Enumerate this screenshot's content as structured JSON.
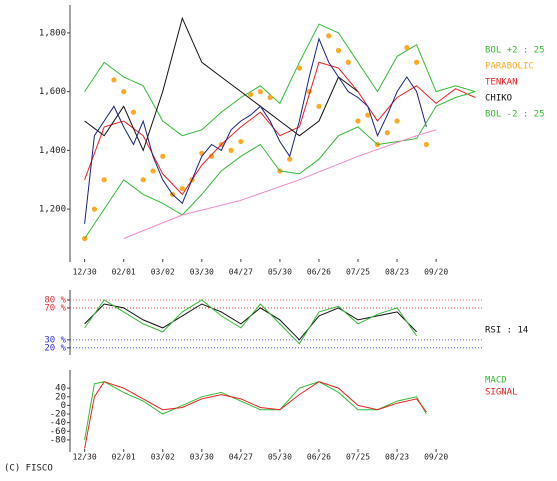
{
  "footer": "(C) FISCO",
  "chart_data": [
    {
      "type": "line",
      "xlim": [
        -1.5,
        40.7
      ],
      "xticks": [
        {
          "value": 0,
          "label": "12/30"
        },
        {
          "value": 4,
          "label": "02/01"
        },
        {
          "value": 8,
          "label": "03/02"
        },
        {
          "value": 12,
          "label": "03/30"
        },
        {
          "value": 16,
          "label": "04/27"
        },
        {
          "value": 20,
          "label": "05/30"
        },
        {
          "value": 24,
          "label": "06/26"
        },
        {
          "value": 28,
          "label": "07/25"
        },
        {
          "value": 32,
          "label": "08/23"
        },
        {
          "value": 36,
          "label": "09/20"
        }
      ],
      "ylim": [
        1020,
        1895
      ],
      "yticks": [
        {
          "value": 1200,
          "label": "1,200"
        },
        {
          "value": 1400,
          "label": "1,400"
        },
        {
          "value": 1600,
          "label": "1,600"
        },
        {
          "value": 1800,
          "label": "1,800"
        }
      ],
      "series": [
        {
          "name": "BOL +2 : 25",
          "color": "#33bb33",
          "style": "line",
          "x": [
            0,
            2,
            4,
            6,
            8,
            10,
            12,
            14,
            16,
            18,
            20,
            22,
            24,
            26,
            28,
            30,
            32,
            34,
            36,
            38,
            40
          ],
          "values": [
            1600,
            1700,
            1650,
            1620,
            1500,
            1450,
            1470,
            1530,
            1580,
            1620,
            1560,
            1700,
            1830,
            1800,
            1700,
            1600,
            1720,
            1760,
            1600,
            1620,
            1600
          ]
        },
        {
          "name": "PARABOLIC",
          "color": "#ffaa22",
          "style": "dots",
          "x": [
            0,
            1,
            2,
            3,
            4,
            5,
            6,
            7,
            8,
            9,
            10,
            11,
            12,
            13,
            14,
            15,
            16,
            17,
            18,
            19,
            20,
            21,
            22,
            23,
            24,
            25,
            26,
            27,
            28,
            29,
            30,
            31,
            32,
            33,
            34,
            35
          ],
          "values": [
            1100,
            1200,
            1300,
            1640,
            1600,
            1530,
            1300,
            1330,
            1380,
            1250,
            1270,
            1300,
            1390,
            1380,
            1420,
            1400,
            1430,
            1590,
            1600,
            1580,
            1330,
            1370,
            1680,
            1600,
            1550,
            1790,
            1740,
            1700,
            1500,
            1520,
            1420,
            1460,
            1500,
            1750,
            1700,
            1420
          ]
        },
        {
          "name": "TENKAN",
          "color": "#ee2222",
          "style": "line",
          "x": [
            0,
            2,
            4,
            6,
            8,
            10,
            12,
            14,
            16,
            18,
            20,
            22,
            24,
            26,
            28,
            30,
            32,
            34,
            36,
            38,
            40
          ],
          "values": [
            1300,
            1480,
            1500,
            1450,
            1320,
            1250,
            1350,
            1420,
            1480,
            1530,
            1450,
            1480,
            1700,
            1680,
            1600,
            1500,
            1580,
            1620,
            1560,
            1610,
            1580
          ]
        },
        {
          "name": "CHIKO",
          "color": "#111111",
          "style": "line",
          "x": [
            0,
            2,
            4,
            6,
            8,
            10,
            12,
            14,
            16,
            18,
            20,
            22,
            24,
            26,
            28
          ],
          "values": [
            1500,
            1450,
            1550,
            1400,
            1600,
            1850,
            1700,
            1650,
            1600,
            1550,
            1500,
            1450,
            1500,
            1650,
            1600
          ]
        },
        {
          "color": "#1a237e",
          "style": "line",
          "x": [
            0,
            1,
            2,
            3,
            4,
            5,
            6,
            7,
            8,
            9,
            10,
            11,
            12,
            13,
            14,
            15,
            16,
            17,
            18,
            19,
            20,
            21,
            22,
            23,
            24,
            25,
            26,
            27,
            28,
            29,
            30,
            31,
            32,
            33,
            34,
            35
          ],
          "values": [
            1150,
            1450,
            1500,
            1550,
            1480,
            1420,
            1500,
            1380,
            1300,
            1250,
            1220,
            1300,
            1380,
            1420,
            1400,
            1470,
            1500,
            1520,
            1550,
            1500,
            1430,
            1380,
            1500,
            1650,
            1780,
            1700,
            1650,
            1600,
            1580,
            1550,
            1450,
            1520,
            1600,
            1650,
            1600,
            1480
          ]
        },
        {
          "name": "BOL -2 : 25",
          "color": "#33bb33",
          "style": "line",
          "x": [
            0,
            2,
            4,
            6,
            8,
            10,
            12,
            14,
            16,
            18,
            20,
            22,
            24,
            26,
            28,
            30,
            32,
            34,
            36,
            38,
            40
          ],
          "values": [
            1100,
            1200,
            1300,
            1250,
            1220,
            1180,
            1250,
            1330,
            1380,
            1420,
            1330,
            1320,
            1370,
            1450,
            1480,
            1420,
            1430,
            1440,
            1550,
            1580,
            1600
          ]
        },
        {
          "color": "#ee88cc",
          "style": "line",
          "x": [
            4,
            10,
            16,
            22,
            28,
            34,
            36
          ],
          "values": [
            1100,
            1180,
            1230,
            1300,
            1380,
            1450,
            1470
          ]
        }
      ]
    },
    {
      "type": "line",
      "xlim": [
        -1.5,
        40.7
      ],
      "ylim": [
        11,
        92.5
      ],
      "yticks": [
        {
          "value": 80,
          "label": "80 %"
        },
        {
          "value": 70,
          "label": "70 %"
        },
        {
          "value": 30,
          "label": "30 %"
        },
        {
          "value": 20,
          "label": "20 %"
        }
      ],
      "tick_colors": [
        "#e03030",
        "#e03030",
        "#3030e0",
        "#3030e0"
      ],
      "series": [
        {
          "name": "RSI : 14",
          "color": "#111111",
          "style": "line",
          "x": [
            0,
            2,
            4,
            6,
            8,
            10,
            12,
            14,
            16,
            18,
            20,
            22,
            24,
            26,
            28,
            30,
            32,
            34
          ],
          "values": [
            50,
            75,
            70,
            55,
            45,
            60,
            75,
            65,
            50,
            70,
            55,
            30,
            60,
            70,
            55,
            60,
            65,
            40
          ]
        },
        {
          "color": "#33bb33",
          "style": "line",
          "x": [
            0,
            2,
            4,
            6,
            8,
            10,
            12,
            14,
            16,
            18,
            20,
            22,
            24,
            26,
            28,
            30,
            32,
            34
          ],
          "values": [
            45,
            80,
            65,
            50,
            40,
            65,
            80,
            60,
            45,
            75,
            50,
            25,
            65,
            72,
            50,
            62,
            70,
            35
          ]
        }
      ]
    },
    {
      "type": "line",
      "xlim": [
        -1.5,
        40.7
      ],
      "xticks": [
        {
          "value": 0,
          "label": "12/30"
        },
        {
          "value": 4,
          "label": "02/01"
        },
        {
          "value": 8,
          "label": "03/02"
        },
        {
          "value": 12,
          "label": "03/30"
        },
        {
          "value": 16,
          "label": "04/27"
        },
        {
          "value": 20,
          "label": "05/30"
        },
        {
          "value": 24,
          "label": "06/26"
        },
        {
          "value": 28,
          "label": "07/25"
        },
        {
          "value": 32,
          "label": "08/23"
        },
        {
          "value": 36,
          "label": "09/20"
        }
      ],
      "ylim": [
        -108,
        82
      ],
      "yticks": [
        40,
        20,
        0,
        -20,
        -40,
        -60,
        -80
      ],
      "series": [
        {
          "name": "MACD",
          "color": "#33bb33",
          "style": "line",
          "x": [
            0,
            1,
            2,
            4,
            6,
            8,
            10,
            12,
            14,
            16,
            18,
            20,
            22,
            24,
            26,
            28,
            30,
            32,
            34,
            35
          ],
          "values": [
            -80,
            50,
            55,
            30,
            10,
            -20,
            0,
            20,
            30,
            10,
            -10,
            -10,
            40,
            55,
            30,
            -10,
            -10,
            10,
            20,
            -20
          ]
        },
        {
          "name": "SIGNAL",
          "color": "#ee2222",
          "style": "line",
          "x": [
            0,
            1,
            2,
            4,
            6,
            8,
            10,
            12,
            14,
            16,
            18,
            20,
            22,
            24,
            26,
            28,
            30,
            32,
            34,
            35
          ],
          "values": [
            -100,
            20,
            55,
            40,
            15,
            -10,
            -5,
            15,
            25,
            15,
            -5,
            -10,
            25,
            55,
            40,
            0,
            -10,
            5,
            15,
            -15
          ]
        }
      ]
    }
  ]
}
